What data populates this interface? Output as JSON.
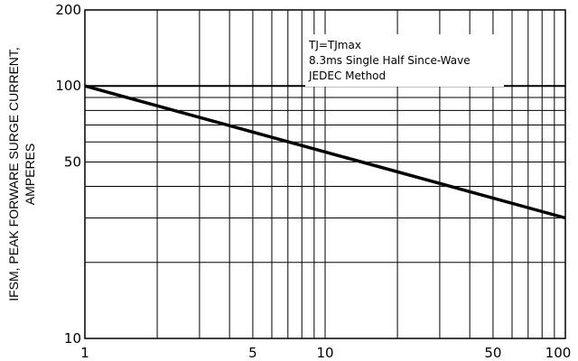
{
  "chart_data": {
    "type": "line",
    "xscale": "log",
    "yscale": "log",
    "xlim": [
      1,
      100
    ],
    "ylim": [
      10,
      200
    ],
    "grid": true,
    "xticks": [
      {
        "value": 1,
        "label": "1"
      },
      {
        "value": 5,
        "label": "5"
      },
      {
        "value": 10,
        "label": "10"
      },
      {
        "value": 50,
        "label": "50"
      },
      {
        "value": 100,
        "label": "100"
      }
    ],
    "yticks": [
      {
        "value": 10,
        "label": "10"
      },
      {
        "value": 50,
        "label": "50"
      },
      {
        "value": 100,
        "label": "100"
      },
      {
        "value": 200,
        "label": "200"
      }
    ],
    "ylabel_line1": "IFSM, PEAK FORWARE SURGE CURRENT,",
    "ylabel_line2": "AMPERES",
    "annotations": [
      "TJ=TJmax",
      "8.3ms Single Half Since-Wave",
      "JEDEC Method"
    ],
    "series": [
      {
        "x": [
          1,
          100
        ],
        "y": [
          100,
          30
        ]
      }
    ]
  }
}
